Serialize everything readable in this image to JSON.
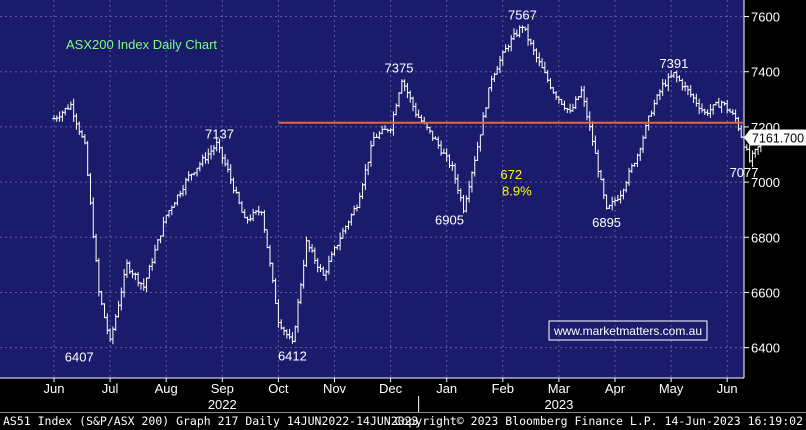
{
  "chart_data": {
    "type": "ohlc",
    "title": "ASX200 Index Daily Chart",
    "watermark": "www.marketmatters.com.au",
    "ylim": [
      6290,
      7660
    ],
    "y_ticks": [
      6400,
      6600,
      6800,
      7000,
      7200,
      7400,
      7600
    ],
    "y_tick_labels": [
      "6400",
      "6600",
      "6800",
      "7000",
      "7200",
      "7400",
      "7600"
    ],
    "months": [
      "Jun",
      "Jul",
      "Aug",
      "Sep",
      "Oct",
      "Nov",
      "Dec",
      "Jan",
      "Feb",
      "Mar",
      "Apr",
      "May",
      "Jun"
    ],
    "month_index": [
      0,
      1,
      2,
      3,
      4,
      5,
      6,
      7,
      8,
      9,
      10,
      11,
      12
    ],
    "years": [
      {
        "label": "2022",
        "month_index": 3
      },
      {
        "label": "2023",
        "month_index": 9
      }
    ],
    "price_path": [
      {
        "m": 0.0,
        "v": 7230
      },
      {
        "m": 0.3,
        "v": 7280
      },
      {
        "m": 0.55,
        "v": 7130
      },
      {
        "m": 0.8,
        "v": 6600
      },
      {
        "m": 1.0,
        "v": 6420
      },
      {
        "m": 1.3,
        "v": 6700
      },
      {
        "m": 1.6,
        "v": 6620
      },
      {
        "m": 2.0,
        "v": 6880
      },
      {
        "m": 2.4,
        "v": 7020
      },
      {
        "m": 2.9,
        "v": 7137
      },
      {
        "m": 3.1,
        "v": 7040
      },
      {
        "m": 3.4,
        "v": 6860
      },
      {
        "m": 3.7,
        "v": 6900
      },
      {
        "m": 4.0,
        "v": 6500
      },
      {
        "m": 4.25,
        "v": 6412
      },
      {
        "m": 4.5,
        "v": 6780
      },
      {
        "m": 4.8,
        "v": 6660
      },
      {
        "m": 5.1,
        "v": 6800
      },
      {
        "m": 5.4,
        "v": 6920
      },
      {
        "m": 5.7,
        "v": 7160
      },
      {
        "m": 6.0,
        "v": 7200
      },
      {
        "m": 6.2,
        "v": 7375
      },
      {
        "m": 6.45,
        "v": 7250
      },
      {
        "m": 6.8,
        "v": 7150
      },
      {
        "m": 7.1,
        "v": 7050
      },
      {
        "m": 7.3,
        "v": 6905
      },
      {
        "m": 7.55,
        "v": 7130
      },
      {
        "m": 7.8,
        "v": 7380
      },
      {
        "m": 8.1,
        "v": 7500
      },
      {
        "m": 8.35,
        "v": 7567
      },
      {
        "m": 8.6,
        "v": 7450
      },
      {
        "m": 8.9,
        "v": 7330
      },
      {
        "m": 9.2,
        "v": 7250
      },
      {
        "m": 9.4,
        "v": 7330
      },
      {
        "m": 9.6,
        "v": 7150
      },
      {
        "m": 9.85,
        "v": 6895
      },
      {
        "m": 10.1,
        "v": 6960
      },
      {
        "m": 10.4,
        "v": 7100
      },
      {
        "m": 10.65,
        "v": 7260
      },
      {
        "m": 10.85,
        "v": 7350
      },
      {
        "m": 11.05,
        "v": 7391
      },
      {
        "m": 11.3,
        "v": 7330
      },
      {
        "m": 11.6,
        "v": 7250
      },
      {
        "m": 11.9,
        "v": 7290
      },
      {
        "m": 12.15,
        "v": 7230
      },
      {
        "m": 12.4,
        "v": 7077
      },
      {
        "m": 12.6,
        "v": 7140
      },
      {
        "m": 12.75,
        "v": 7161.7
      }
    ],
    "resistance_line": {
      "value": 7215,
      "from_month_index": 4.0,
      "color": "#e8643c"
    },
    "last_price": {
      "value": 7161.7,
      "label": "7161.700"
    },
    "annotations": [
      {
        "text": "6407",
        "m": 0.45,
        "v": 6407,
        "pos": "below",
        "color": "#ffffff"
      },
      {
        "text": "7137",
        "m": 2.95,
        "v": 7137,
        "pos": "above",
        "color": "#ffffff"
      },
      {
        "text": "6412",
        "m": 4.25,
        "v": 6412,
        "pos": "below",
        "color": "#ffffff"
      },
      {
        "text": "7375",
        "m": 6.15,
        "v": 7375,
        "pos": "above",
        "color": "#ffffff"
      },
      {
        "text": "6905",
        "m": 7.05,
        "v": 6905,
        "pos": "below",
        "color": "#ffffff"
      },
      {
        "text": "7567",
        "m": 8.35,
        "v": 7567,
        "pos": "above",
        "color": "#ffffff"
      },
      {
        "text": "672",
        "m": 8.15,
        "v": 6990,
        "pos": "above",
        "color": "#ffff00"
      },
      {
        "text": "8.9%",
        "m": 8.25,
        "v": 6930,
        "pos": "above",
        "color": "#ffff00"
      },
      {
        "text": "6895",
        "m": 9.85,
        "v": 6895,
        "pos": "below",
        "color": "#ffffff"
      },
      {
        "text": "7391",
        "m": 11.05,
        "v": 7391,
        "pos": "above",
        "color": "#ffffff"
      },
      {
        "text": "7077",
        "m": 12.3,
        "v": 7077,
        "pos": "below",
        "color": "#ffffff"
      }
    ],
    "colors": {
      "plot_bg": "#1b1b6b",
      "grid": "#5f5fa0",
      "bars": "#ffffff",
      "title_text": "#7cff7c",
      "watermark_text": "#ffffff",
      "watermark_border": "#ffffff",
      "axis_text": "#ffffff",
      "footer_text": "#ffffff",
      "last_price_bg": "#ffffff",
      "last_price_text": "#000000"
    }
  },
  "footer": {
    "left": "AS51 Index (S&P/ASX 200) Graph 217  Daily 14JUN2022-14JUN2023",
    "right": "Copyright© 2023 Bloomberg Finance L.P.  14-Jun-2023 16:19:02"
  }
}
